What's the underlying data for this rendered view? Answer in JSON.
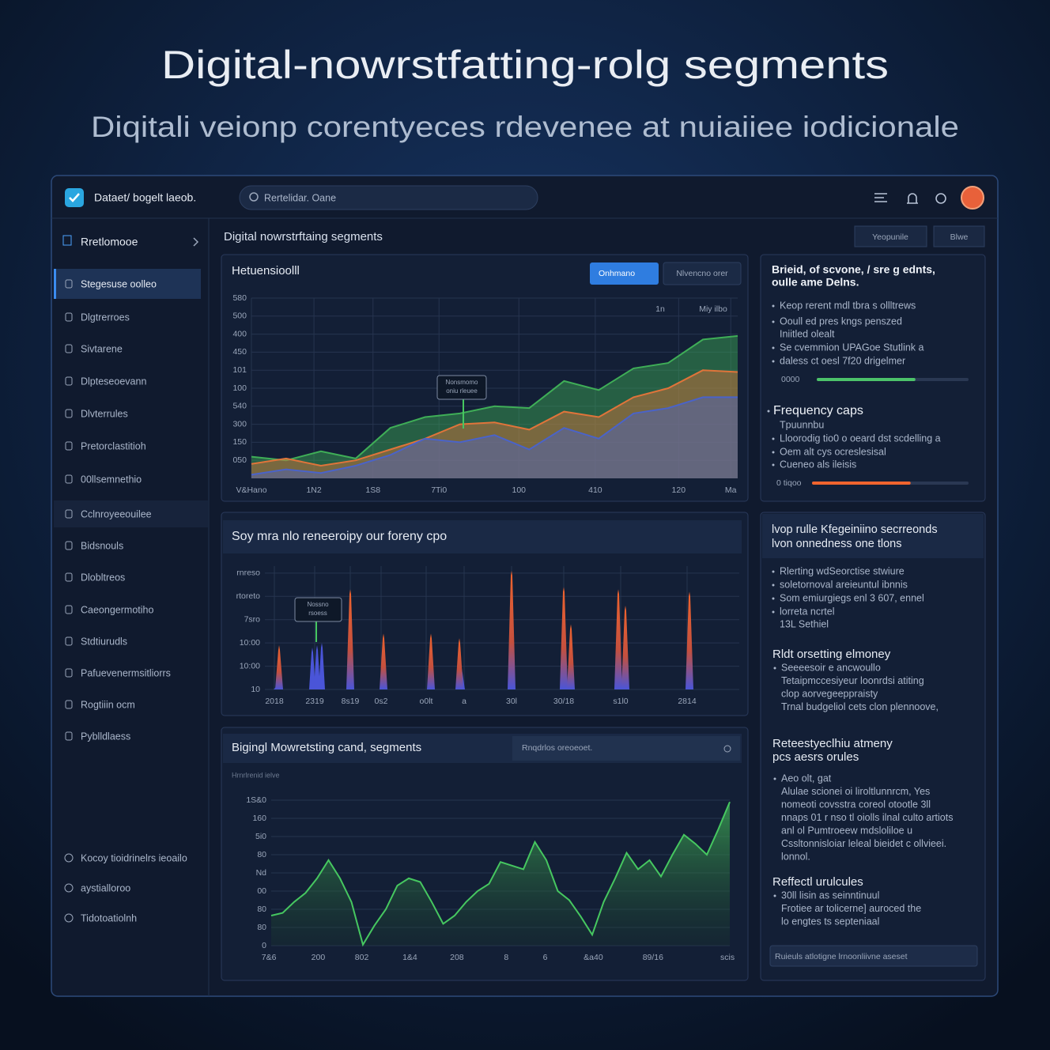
{
  "header": {
    "title": "Digital-nowrstfatting-rolg segments",
    "subtitle": "Diqitali veionp corentyeces rdevenee at nuiaiiee iodicionale"
  },
  "topbar": {
    "app_name": "Dataet/ bogelt laeob.",
    "search_placeholder": "Rertelidar. Oane"
  },
  "sidebar": {
    "heading": "Rretlomooe",
    "items": [
      "Stegesuse oolleo",
      "Dlgtrerroes",
      "Sivtarene",
      "Dlpteseoevann",
      "Dlvterrules",
      "Pretorclastitioh",
      "00llsemnethio",
      "Cclnroyeeouilee",
      "Bidsnouls",
      "Dlobltreos",
      "Caeongermotiho",
      "Stdtiurudls",
      "Pafuevenermsitliorrs",
      "Rogtiiin ocm",
      "Pyblldlaess"
    ],
    "footer_items": [
      "Kocoy tioidrinelrs ieoailo",
      "aystialloroo",
      "Tidotoatiolnh"
    ]
  },
  "content": {
    "title": "Digital nowrstrftaing segments",
    "buttons": [
      "Yeopunile",
      "Blwe"
    ]
  },
  "chart_data": [
    {
      "type": "area",
      "title": "Hetuensioolll",
      "buttons": [
        "Onhmano",
        "Nlvencno orer"
      ],
      "legend_labels": [
        "1n",
        "Miy ilbo"
      ],
      "tooltip": [
        "Nonsmomo",
        "oniu rleuee"
      ],
      "x": [
        0,
        1,
        2,
        3,
        4,
        5,
        6,
        7,
        8,
        9,
        10,
        11,
        12,
        13,
        14
      ],
      "xlim": [
        0,
        14
      ],
      "ylim": [
        0,
        10
      ],
      "xticks": [
        {
          "value": 0,
          "label": "V&Hano"
        },
        {
          "value": 1.8,
          "label": "1N2"
        },
        {
          "value": 3.5,
          "label": "1S8"
        },
        {
          "value": 5.4,
          "label": "7Ti0"
        },
        {
          "value": 7.7,
          "label": "100"
        },
        {
          "value": 9.9,
          "label": "410"
        },
        {
          "value": 12.3,
          "label": "120"
        },
        {
          "value": 13.8,
          "label": "Ma"
        }
      ],
      "yticks": [
        {
          "value": 1,
          "label": "050"
        },
        {
          "value": 2,
          "label": "150"
        },
        {
          "value": 3,
          "label": "300"
        },
        {
          "value": 4,
          "label": "540"
        },
        {
          "value": 5,
          "label": "100"
        },
        {
          "value": 6,
          "label": "101"
        },
        {
          "value": 7,
          "label": "450"
        },
        {
          "value": 8,
          "label": "400"
        },
        {
          "value": 9,
          "label": "500"
        },
        {
          "value": 10,
          "label": "580"
        }
      ],
      "series": [
        {
          "color": "#3fae57",
          "values": [
            1.2,
            1.0,
            1.5,
            1.1,
            2.8,
            3.4,
            3.6,
            4.0,
            3.9,
            5.4,
            4.9,
            6.1,
            6.4,
            7.7,
            7.9
          ]
        },
        {
          "color": "#e0743a",
          "values": [
            0.8,
            1.1,
            0.7,
            1.0,
            1.6,
            2.2,
            3.0,
            3.1,
            2.7,
            3.7,
            3.4,
            4.5,
            5.0,
            6.0,
            5.9
          ]
        },
        {
          "color": "#4a63c9",
          "values": [
            0.2,
            0.5,
            0.3,
            0.7,
            1.3,
            2.2,
            2.0,
            2.4,
            1.6,
            2.8,
            2.2,
            3.6,
            3.9,
            4.5,
            4.5
          ]
        }
      ],
      "grid": true
    },
    {
      "type": "spike",
      "title": "Soy mra nlo reneeroipy our foreny cpo",
      "tooltip": [
        "Nossno",
        "rsoess"
      ],
      "xlim": [
        0,
        10
      ],
      "ylim": [
        0,
        5.3
      ],
      "xticks": [
        {
          "value": 0.2,
          "label": "2018"
        },
        {
          "value": 1.05,
          "label": "2319"
        },
        {
          "value": 1.8,
          "label": "8s19"
        },
        {
          "value": 2.45,
          "label": "0s2"
        },
        {
          "value": 3.4,
          "label": "o0lt"
        },
        {
          "value": 4.2,
          "label": "a"
        },
        {
          "value": 5.2,
          "label": "30l"
        },
        {
          "value": 6.3,
          "label": "30/18"
        },
        {
          "value": 7.5,
          "label": "s1l0"
        },
        {
          "value": 8.9,
          "label": "2814"
        }
      ],
      "yticks": [
        {
          "value": 0,
          "label": "10"
        },
        {
          "value": 1,
          "label": "10:00"
        },
        {
          "value": 2,
          "label": "10:00"
        },
        {
          "value": 3,
          "label": "7sro"
        },
        {
          "value": 4,
          "label": "rtoreto"
        },
        {
          "value": 5,
          "label": "rnreso"
        }
      ],
      "series": [
        {
          "color": "#4a55d8",
          "x": [
            0.25,
            1.0,
            1.1,
            1.2,
            4.15
          ],
          "values": [
            0.3,
            1.8,
            1.9,
            2.0,
            0.9
          ]
        },
        {
          "color": "#f0642e",
          "x": [
            0.3,
            1.8,
            2.5,
            3.5,
            4.1,
            5.2,
            6.3,
            6.45,
            7.45,
            7.6,
            8.95
          ],
          "values": [
            1.9,
            4.3,
            2.4,
            2.4,
            2.2,
            5.1,
            4.4,
            2.8,
            4.3,
            3.6,
            4.2
          ]
        }
      ],
      "grid": true
    },
    {
      "type": "area",
      "title": "Bigingl Mowretsting cand, segments",
      "search_placeholder": "Rnqdrlos oreoeoet.",
      "legend_labels": [
        "Hrnrlrenid ielve"
      ],
      "x": [
        0,
        1,
        2,
        3,
        4,
        5,
        6,
        7,
        8,
        9,
        10,
        11,
        12,
        13,
        14,
        15,
        16,
        17,
        18,
        19,
        20,
        21,
        22,
        23,
        24,
        25,
        26,
        27,
        28,
        29,
        30,
        31,
        32,
        33,
        34,
        35,
        36,
        37,
        38,
        39,
        40
      ],
      "xlim": [
        0,
        40
      ],
      "ylim": [
        0,
        8
      ],
      "xticks": [
        {
          "value": -0.2,
          "label": "7&6"
        },
        {
          "value": 4.1,
          "label": "200"
        },
        {
          "value": 7.9,
          "label": "802"
        },
        {
          "value": 12.1,
          "label": "1&4"
        },
        {
          "value": 16.2,
          "label": "208"
        },
        {
          "value": 20.5,
          "label": "8"
        },
        {
          "value": 23.9,
          "label": "6"
        },
        {
          "value": 28.1,
          "label": "&a40"
        },
        {
          "value": 33.3,
          "label": "89/16"
        },
        {
          "value": 39.8,
          "label": "scis"
        }
      ],
      "yticks": [
        0,
        {
          "value": 1,
          "label": "80"
        },
        {
          "value": 2,
          "label": "80"
        },
        {
          "value": 3,
          "label": "00"
        },
        {
          "value": 4,
          "label": "Nd"
        },
        {
          "value": 5,
          "label": "80"
        },
        {
          "value": 6,
          "label": "5i0"
        },
        {
          "value": 7,
          "label": "160"
        },
        {
          "value": 8,
          "label": "1S&0"
        }
      ],
      "series": [
        {
          "color": "#46c760",
          "values": [
            1.65,
            1.8,
            2.4,
            2.9,
            3.7,
            4.7,
            3.7,
            2.4,
            0.05,
            1.1,
            2.0,
            3.3,
            3.7,
            3.5,
            2.4,
            1.2,
            1.65,
            2.4,
            3.0,
            3.4,
            4.6,
            4.4,
            4.2,
            5.7,
            4.7,
            3.0,
            2.5,
            1.6,
            0.6,
            2.4,
            3.7,
            5.1,
            4.2,
            4.7,
            3.8,
            5.0,
            6.1,
            5.6,
            5.0,
            6.4,
            7.9
          ]
        }
      ],
      "grid": true
    }
  ],
  "insights": {
    "heading": [
      "Brieid, of scvone, / sre g ednts,",
      "oulle ame Delns."
    ],
    "lines": [
      "Keop rerent mdl tbra s ollltrews",
      "Ooull ed pres kngs penszed",
      "Iniitled olealt",
      "Se cvemmion UPAGoe Stutlink a",
      "daless ct oesl 7f20 drigelmer"
    ],
    "progress": [
      {
        "label": "0000",
        "value": 65,
        "color": "#4cc36a"
      },
      {
        "label": "0 tiqoo",
        "value": 63,
        "color": "#f0642e"
      }
    ],
    "caps_title": "Frequency caps",
    "caps_lines": [
      "Tpuunnbu",
      "Lloorodig tio0 o oeard dst scdelling a",
      "Oem alt cys ocreslesisal",
      "Cueneo als ileisis"
    ]
  },
  "rules": {
    "heading": [
      "lvop rulle Kfegeiniino secrreonds",
      "lvon onnedness one tlons"
    ],
    "lines": [
      "Rlerting wdSeorctise stwiure",
      "soletornoval areieuntul ibnnis",
      "Som emiurgiegs enl 3 607, ennel",
      "lorreta ncrtel",
      "13L Sethiel"
    ],
    "sections": [
      {
        "title": [
          "Rldt orsetting elmoney"
        ],
        "lines": [
          "Seeeesoir e ancwoullo",
          "Tetaipmccesiyeur loonrdsi atiting",
          "clop aorvegeeppraisty",
          "Trnal budgeliol cets clon plennoove,"
        ]
      },
      {
        "title": [
          "Reteestyeclhiu atmeny",
          "pcs aesrs orules"
        ],
        "lines": [
          "Aeo olt, gat",
          "Alulae scionei oi liroltlunnrcm, Yes",
          "nomeoti covsstra coreol otootle 3ll",
          "nnaps 01 r nso tl oiolls ilnal culto artiots",
          "anl ol Pumtroeew mdsloliloe u",
          "Cssltonnisloiar leleal bieidet c ollvieei.",
          "lonnol."
        ]
      },
      {
        "title": [
          "Reffectl urulcules"
        ],
        "lines": [
          "30ll lisin as seinntinuul",
          "Frotiee ar tolicerne] auroced the",
          "lo engtes ts septeniaal"
        ]
      }
    ],
    "input_placeholder": "Ruieuls atlotigne lrnoonliivne aseset"
  }
}
